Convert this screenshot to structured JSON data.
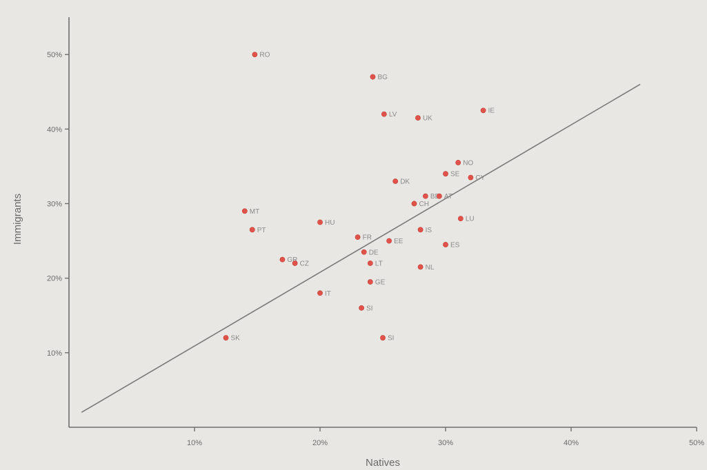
{
  "chart_data": {
    "type": "scatter",
    "title": "",
    "xlabel": "Natives",
    "ylabel": "Immigrants",
    "xlim": [
      0,
      50
    ],
    "ylim": [
      0,
      55
    ],
    "x_ticks": [
      {
        "value": 10,
        "label": "10%"
      },
      {
        "value": 20,
        "label": "20%"
      },
      {
        "value": 30,
        "label": "30%"
      },
      {
        "value": 40,
        "label": "40%"
      },
      {
        "value": 50,
        "label": "50%"
      }
    ],
    "y_ticks": [
      {
        "value": 10,
        "label": "10%"
      },
      {
        "value": 20,
        "label": "20%"
      },
      {
        "value": 30,
        "label": "30%"
      },
      {
        "value": 40,
        "label": "40%"
      },
      {
        "value": 50,
        "label": "50%"
      }
    ],
    "grid": false,
    "legend": "none",
    "point_color": "#e0524a",
    "trend_line": {
      "x": [
        1,
        45.5
      ],
      "y": [
        2,
        46
      ]
    },
    "points": [
      {
        "label": "RO",
        "x": 14.8,
        "y": 50
      },
      {
        "label": "BG",
        "x": 24.2,
        "y": 47
      },
      {
        "label": "LV",
        "x": 25.1,
        "y": 42
      },
      {
        "label": "UK",
        "x": 27.8,
        "y": 41.5
      },
      {
        "label": "IE",
        "x": 33.0,
        "y": 42.5
      },
      {
        "label": "NO",
        "x": 31.0,
        "y": 35.5
      },
      {
        "label": "SE",
        "x": 30.0,
        "y": 34
      },
      {
        "label": "CY",
        "x": 32.0,
        "y": 33.5
      },
      {
        "label": "DK",
        "x": 26.0,
        "y": 33
      },
      {
        "label": "BE",
        "x": 28.4,
        "y": 31
      },
      {
        "label": "CH",
        "x": 27.5,
        "y": 30
      },
      {
        "label": "AT",
        "x": 29.5,
        "y": 31
      },
      {
        "label": "MT",
        "x": 14.0,
        "y": 29
      },
      {
        "label": "PT",
        "x": 14.6,
        "y": 26.5
      },
      {
        "label": "HU",
        "x": 20.0,
        "y": 27.5
      },
      {
        "label": "IS",
        "x": 28.0,
        "y": 26.5
      },
      {
        "label": "LU",
        "x": 31.2,
        "y": 28
      },
      {
        "label": "FR",
        "x": 23.0,
        "y": 25.5
      },
      {
        "label": "EE",
        "x": 25.5,
        "y": 25
      },
      {
        "label": "ES",
        "x": 30.0,
        "y": 24.5
      },
      {
        "label": "DE",
        "x": 23.5,
        "y": 23.5
      },
      {
        "label": "GR",
        "x": 17.0,
        "y": 22.5
      },
      {
        "label": "CZ",
        "x": 18.0,
        "y": 22
      },
      {
        "label": "LT",
        "x": 24.0,
        "y": 22
      },
      {
        "label": "NL",
        "x": 28.0,
        "y": 21.5
      },
      {
        "label": "GE",
        "x": 24.0,
        "y": 19.5
      },
      {
        "label": "IT",
        "x": 20.0,
        "y": 18
      },
      {
        "label": "SI",
        "x": 23.3,
        "y": 16
      },
      {
        "label": "SK",
        "x": 12.5,
        "y": 12
      },
      {
        "label": "SI",
        "x": 25.0,
        "y": 12
      }
    ]
  }
}
